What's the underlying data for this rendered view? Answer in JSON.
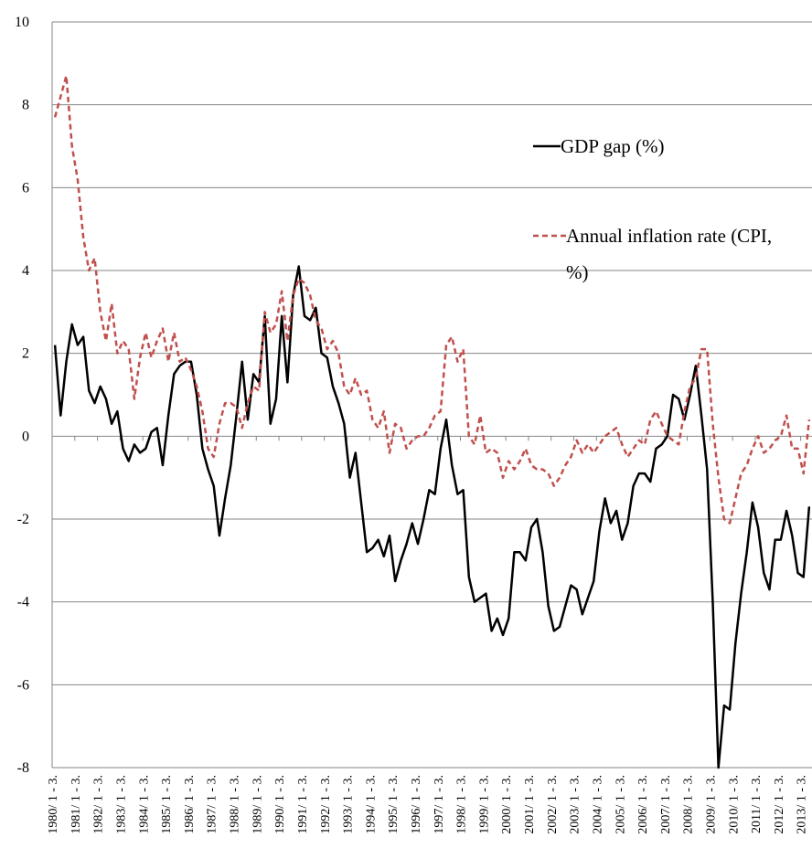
{
  "chart_data": {
    "type": "line",
    "categories": [
      "1980/ 1 - 3.",
      null,
      null,
      null,
      "1981/ 1 - 3.",
      null,
      null,
      null,
      "1982/ 1 - 3.",
      null,
      null,
      null,
      "1983/ 1 - 3.",
      null,
      null,
      null,
      "1984/ 1 - 3.",
      null,
      null,
      null,
      "1985/ 1 - 3.",
      null,
      null,
      null,
      "1986/ 1 - 3.",
      null,
      null,
      null,
      "1987/ 1 - 3.",
      null,
      null,
      null,
      "1988/ 1 - 3.",
      null,
      null,
      null,
      "1989/ 1 - 3.",
      null,
      null,
      null,
      "1990/ 1 - 3.",
      null,
      null,
      null,
      "1991/ 1 - 3.",
      null,
      null,
      null,
      "1992/ 1 - 3.",
      null,
      null,
      null,
      "1993/ 1 - 3.",
      null,
      null,
      null,
      "1994/ 1 - 3.",
      null,
      null,
      null,
      "1995/ 1 - 3.",
      null,
      null,
      null,
      "1996/ 1 - 3.",
      null,
      null,
      null,
      "1997/ 1 - 3.",
      null,
      null,
      null,
      "1998/ 1 - 3.",
      null,
      null,
      null,
      "1999/ 1 - 3.",
      null,
      null,
      null,
      "2000/ 1 - 3.",
      null,
      null,
      null,
      "2001/ 1 - 3.",
      null,
      null,
      null,
      "2002/ 1 - 3.",
      null,
      null,
      null,
      "2003/ 1 - 3.",
      null,
      null,
      null,
      "2004/ 1 - 3.",
      null,
      null,
      null,
      "2005/ 1 - 3.",
      null,
      null,
      null,
      "2006/ 1 - 3.",
      null,
      null,
      null,
      "2007/ 1 - 3.",
      null,
      null,
      null,
      "2008/ 1 - 3.",
      null,
      null,
      null,
      "2009/ 1 - 3.",
      null,
      null,
      null,
      "2010/ 1 - 3.",
      null,
      null,
      null,
      "2011/ 1 - 3.",
      null,
      null,
      null,
      "2012/ 1 - 3.",
      null,
      null,
      null,
      "2013/ 1 - 3.",
      null
    ],
    "series": [
      {
        "name": "GDP gap (%)",
        "color": "#000000",
        "line_style": "solid",
        "values": [
          2.2,
          0.5,
          1.8,
          2.7,
          2.2,
          2.4,
          1.1,
          0.8,
          1.2,
          0.9,
          0.3,
          0.6,
          -0.3,
          -0.6,
          -0.2,
          -0.4,
          -0.3,
          0.1,
          0.2,
          -0.7,
          0.5,
          1.5,
          1.7,
          1.8,
          1.8,
          1.0,
          -0.3,
          -0.8,
          -1.2,
          -2.4,
          -1.5,
          -0.7,
          0.5,
          1.8,
          0.4,
          1.5,
          1.3,
          2.9,
          0.3,
          0.9,
          2.9,
          1.3,
          3.4,
          4.1,
          2.9,
          2.8,
          3.1,
          2.0,
          1.9,
          1.2,
          0.8,
          0.3,
          -1.0,
          -0.4,
          -1.6,
          -2.8,
          -2.7,
          -2.5,
          -2.9,
          -2.4,
          -3.5,
          -3.0,
          -2.6,
          -2.1,
          -2.6,
          -2.0,
          -1.3,
          -1.4,
          -0.3,
          0.4,
          -0.7,
          -1.4,
          -1.3,
          -3.4,
          -4.0,
          -3.9,
          -3.8,
          -4.7,
          -4.4,
          -4.8,
          -4.4,
          -2.8,
          -2.8,
          -3.0,
          -2.2,
          -2.0,
          -2.8,
          -4.1,
          -4.7,
          -4.6,
          -4.1,
          -3.6,
          -3.7,
          -4.3,
          -3.9,
          -3.5,
          -2.3,
          -1.5,
          -2.1,
          -1.8,
          -2.5,
          -2.1,
          -1.2,
          -0.9,
          -0.9,
          -1.1,
          -0.3,
          -0.2,
          0.0,
          1.0,
          0.9,
          0.4,
          1.0,
          1.7,
          0.5,
          -0.8,
          -4.0,
          -8.0,
          -6.5,
          -6.6,
          -5.0,
          -3.8,
          -2.8,
          -1.6,
          -2.2,
          -3.3,
          -3.7,
          -2.5,
          -2.5,
          -1.8,
          -2.4,
          -3.3,
          -3.4,
          -1.7
        ]
      },
      {
        "name": "Annual inflation rate (CPI, %)",
        "color": "#c0504d",
        "line_style": "dashed",
        "values": [
          7.7,
          8.2,
          8.7,
          7.0,
          6.2,
          4.8,
          4.0,
          4.3,
          3.0,
          2.3,
          3.2,
          2.0,
          2.3,
          2.1,
          0.9,
          1.9,
          2.5,
          1.9,
          2.3,
          2.6,
          1.8,
          2.5,
          1.8,
          1.9,
          1.6,
          1.2,
          0.6,
          -0.3,
          -0.5,
          0.3,
          0.8,
          0.8,
          0.7,
          0.2,
          0.8,
          1.2,
          1.1,
          3.0,
          2.5,
          2.7,
          3.5,
          2.3,
          3.4,
          3.8,
          3.7,
          3.4,
          2.8,
          2.6,
          2.1,
          2.3,
          2.0,
          1.2,
          1.0,
          1.4,
          1.0,
          1.1,
          0.4,
          0.2,
          0.6,
          -0.4,
          0.3,
          0.2,
          -0.3,
          -0.1,
          0.0,
          0.0,
          0.2,
          0.5,
          0.6,
          2.2,
          2.4,
          1.8,
          2.1,
          0.0,
          -0.2,
          0.5,
          -0.4,
          -0.3,
          -0.4,
          -1.0,
          -0.6,
          -0.8,
          -0.6,
          -0.3,
          -0.7,
          -0.8,
          -0.8,
          -0.9,
          -1.2,
          -1.0,
          -0.7,
          -0.5,
          -0.1,
          -0.4,
          -0.2,
          -0.4,
          -0.2,
          0.0,
          0.1,
          0.2,
          -0.2,
          -0.5,
          -0.3,
          -0.1,
          -0.2,
          0.4,
          0.6,
          0.3,
          0.0,
          -0.1,
          -0.2,
          0.6,
          1.2,
          1.4,
          2.1,
          2.1,
          0.3,
          -1.0,
          -2.0,
          -2.1,
          -1.5,
          -0.9,
          -0.7,
          -0.3,
          0.0,
          -0.4,
          -0.3,
          -0.1,
          0.0,
          0.5,
          -0.3,
          -0.3,
          -0.9,
          0.4
        ]
      }
    ],
    "ylim": [
      -8,
      10
    ],
    "yticks": [
      -8,
      -6,
      -4,
      -2,
      0,
      2,
      4,
      6,
      8,
      10
    ],
    "grid": true
  }
}
